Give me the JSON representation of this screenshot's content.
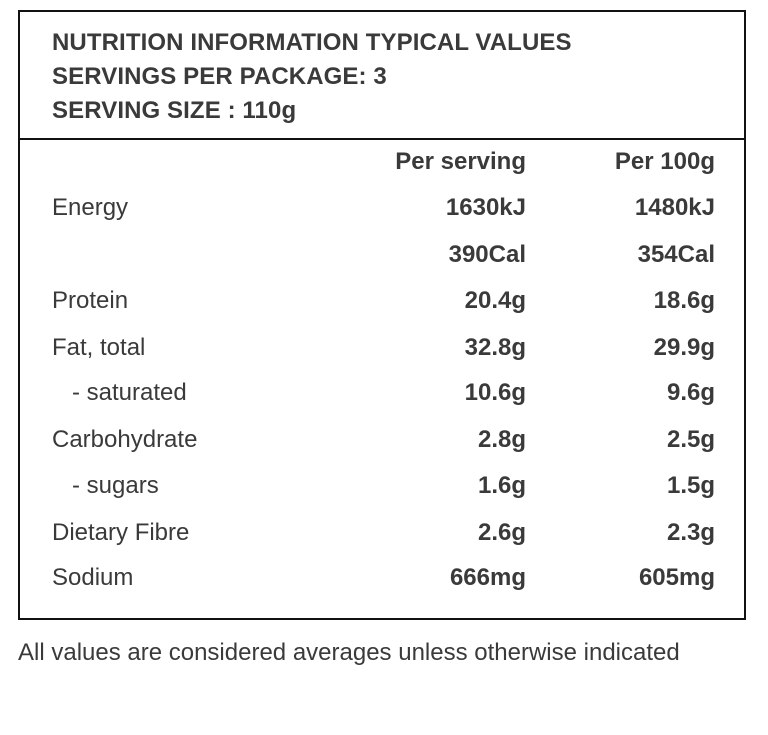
{
  "header": {
    "line1": "NUTRITION INFORMATION TYPICAL VALUES",
    "line2": "SERVINGS PER PACKAGE: 3",
    "line3": "SERVING SIZE : 110g"
  },
  "columns": {
    "per_serving": "Per serving",
    "per_100g": "Per 100g"
  },
  "rows": [
    {
      "label": "Energy",
      "per_serving": "1630kJ",
      "per_100g": "1480kJ"
    },
    {
      "label": "",
      "per_serving": "390Cal",
      "per_100g": "354Cal"
    },
    {
      "label": "Protein",
      "per_serving": "20.4g",
      "per_100g": "18.6g"
    },
    {
      "label": "Fat, total",
      "per_serving": "32.8g",
      "per_100g": "29.9g"
    },
    {
      "label": "- saturated",
      "per_serving": "10.6g",
      "per_100g": "9.6g"
    },
    {
      "label": "Carbohydrate",
      "per_serving": "2.8g",
      "per_100g": "2.5g"
    },
    {
      "label": "- sugars",
      "per_serving": "1.6g",
      "per_100g": "1.5g"
    },
    {
      "label": "Dietary Fibre",
      "per_serving": "2.6g",
      "per_100g": "2.3g"
    },
    {
      "label": "Sodium",
      "per_serving": "666mg",
      "per_100g": "605mg"
    }
  ],
  "footnote": "All values are considered averages unless otherwise indicated"
}
